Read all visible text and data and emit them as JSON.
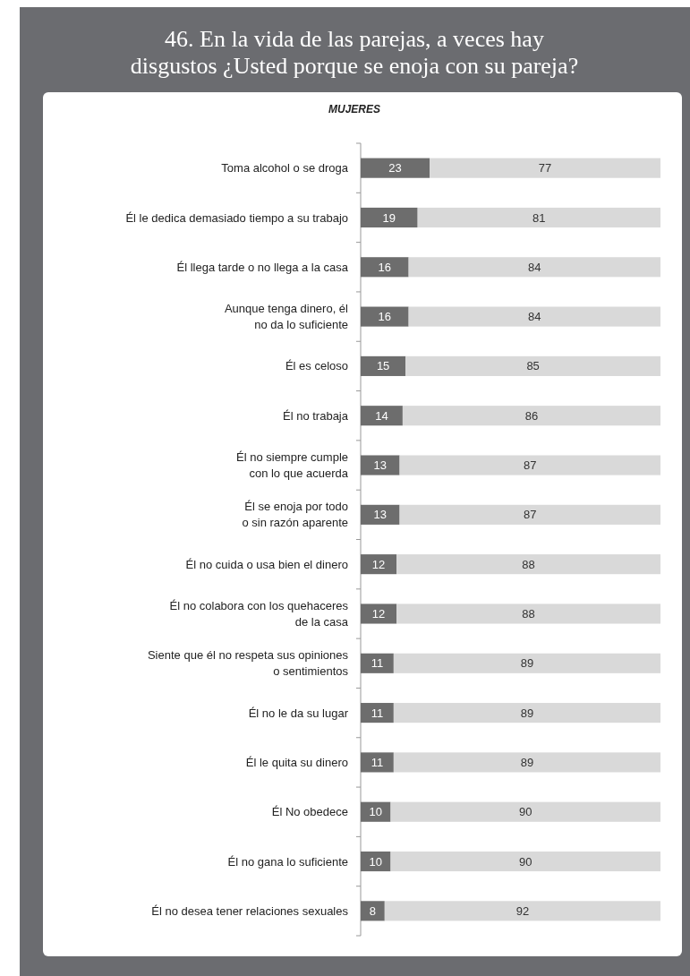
{
  "chart_data": {
    "type": "bar",
    "orientation": "horizontal",
    "stacked": true,
    "title": "46. En la vida de las parejas, a veces hay disgustos ¿Usted porque se enoja con su pareja?",
    "subtitle": "MUJERES",
    "categories": [
      "Toma alcohol o se droga",
      "Él le dedica demasiado tiempo a su trabajo",
      "Él llega tarde o no llega a la casa",
      "Aunque tenga dinero, él\nno da lo suficiente",
      "Él es celoso",
      "Él no trabaja",
      "Él no siempre cumple\ncon lo que acuerda",
      "Él se enoja por todo\no sin razón aparente",
      "Él no cuida o usa bien el dinero",
      "Él no colabora con los quehaceres\nde la casa",
      "Siente que él no respeta sus opiniones\no sentimientos",
      "Él no le da su lugar",
      "Él le quita su dinero",
      "Él No obedece",
      "Él no gana lo suficiente",
      "Él no desea tener relaciones sexuales"
    ],
    "series": [
      {
        "color": "#6d6d6d",
        "values": [
          23,
          19,
          16,
          16,
          15,
          14,
          13,
          13,
          12,
          12,
          11,
          11,
          11,
          10,
          10,
          8
        ]
      },
      {
        "color": "#d9d9d9",
        "values": [
          77,
          81,
          84,
          84,
          85,
          86,
          87,
          87,
          88,
          88,
          89,
          89,
          89,
          90,
          90,
          92
        ]
      }
    ],
    "xlim": [
      0,
      100
    ],
    "tick_labels": "y",
    "data_labels": true
  }
}
